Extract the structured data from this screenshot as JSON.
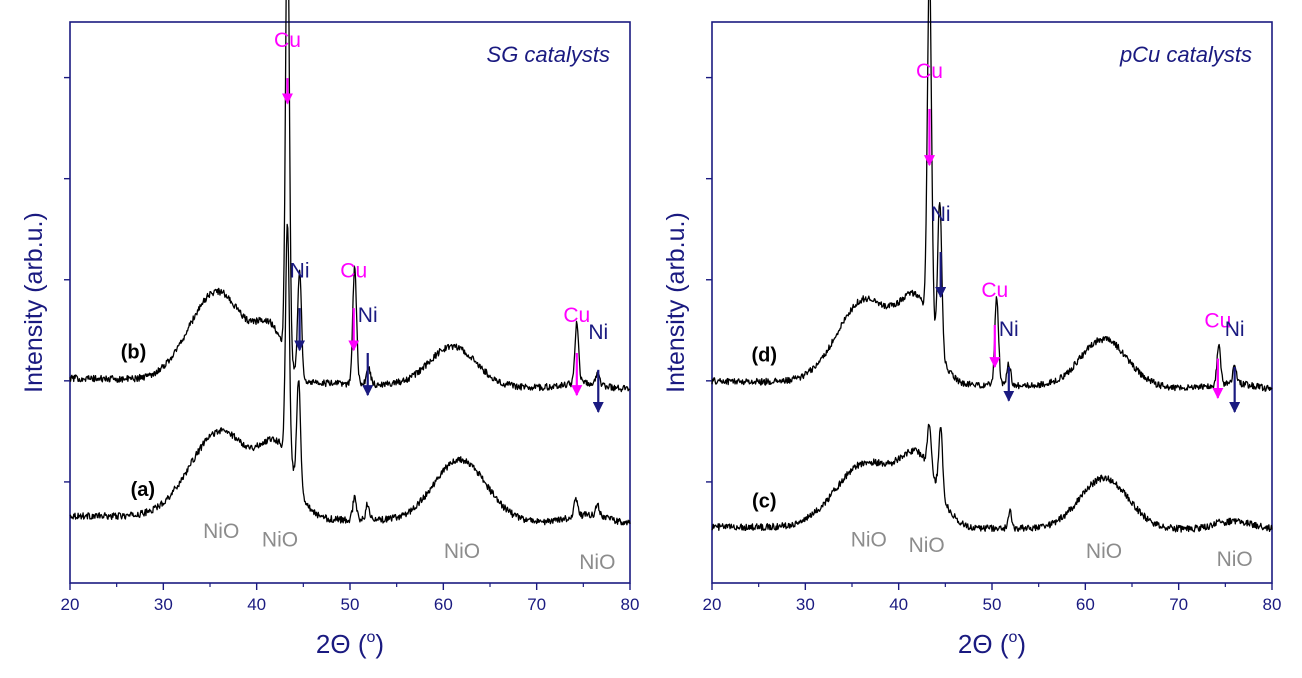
{
  "colors": {
    "axis": "#1a1a80",
    "trace": "#000000",
    "cu": "#ff00ff",
    "ni": "#1a1a80",
    "nio": "#8c8c8c",
    "title": "#1a1a80"
  },
  "chart_data": [
    {
      "type": "line",
      "title": "SG catalysts",
      "xlabel": "2Θ (o)",
      "xlabel_main": "2Θ (",
      "xlabel_sup": "o",
      "xlabel_close": ")",
      "ylabel": "Intensity (arb.u.)",
      "xlim": [
        20,
        80
      ],
      "ylim": [
        0,
        1
      ],
      "x_ticks": [
        20,
        30,
        40,
        50,
        60,
        70,
        80
      ],
      "y_ticks_labeled": false,
      "series": [
        {
          "label": "(a)",
          "label_x": 27.8,
          "baseline": 0.12,
          "end": 0.105,
          "humps": [
            [
              36.2,
              0.155,
              3.3
            ],
            [
              42.3,
              0.11,
              1.8
            ],
            [
              61.8,
              0.11,
              2.8
            ],
            [
              75.5,
              0.015,
              2.2
            ]
          ],
          "peaks": [
            [
              43.3,
              0.42,
              0.2
            ],
            [
              44.5,
              0.19,
              0.2
            ],
            [
              50.5,
              0.04,
              0.2
            ],
            [
              51.9,
              0.03,
              0.2
            ],
            [
              74.2,
              0.03,
              0.2
            ],
            [
              76.5,
              0.02,
              0.2
            ]
          ]
        },
        {
          "label": "(b)",
          "label_x": 26.8,
          "baseline": 0.365,
          "end": 0.345,
          "humps": [
            [
              35.8,
              0.16,
              3.0
            ],
            [
              41.5,
              0.08,
              1.5
            ],
            [
              61.0,
              0.07,
              2.5
            ],
            [
              75.0,
              0.01,
              2.0
            ]
          ],
          "peaks": [
            [
              43.3,
              0.83,
              0.2
            ],
            [
              44.6,
              0.19,
              0.2
            ],
            [
              50.5,
              0.21,
              0.2
            ],
            [
              52.0,
              0.03,
              0.2
            ],
            [
              74.3,
              0.11,
              0.2
            ],
            [
              76.5,
              0.02,
              0.2
            ]
          ]
        }
      ],
      "annotations": [
        {
          "text": "Cu",
          "type": "cu",
          "x": 43.3,
          "y_text": 0.955,
          "y_start": 0.9,
          "y_tip": 0.855
        },
        {
          "text": "Ni",
          "type": "ni",
          "x": 44.6,
          "y_text": 0.545,
          "y_start": 0.49,
          "y_tip": 0.415
        },
        {
          "text": "Cu",
          "type": "cu",
          "x": 50.4,
          "y_text": 0.545,
          "y_start": 0.49,
          "y_tip": 0.415
        },
        {
          "text": "Ni",
          "type": "ni",
          "x": 51.9,
          "y_text": 0.465,
          "y_start": 0.41,
          "y_tip": 0.335
        },
        {
          "text": "Cu",
          "type": "cu",
          "x": 74.3,
          "y_text": 0.465,
          "y_start": 0.41,
          "y_tip": 0.335
        },
        {
          "text": "Ni",
          "type": "ni",
          "x": 76.6,
          "y_text": 0.435,
          "y_start": 0.38,
          "y_tip": 0.305
        },
        {
          "text": "NiO",
          "type": "nio",
          "x": 36.2,
          "y_text": 0.08
        },
        {
          "text": "NiO",
          "type": "nio",
          "x": 42.5,
          "y_text": 0.065
        },
        {
          "text": "NiO",
          "type": "nio",
          "x": 62.0,
          "y_text": 0.045
        },
        {
          "text": "NiO",
          "type": "nio",
          "x": 76.5,
          "y_text": 0.025
        }
      ]
    },
    {
      "type": "line",
      "title": "pCu catalysts",
      "xlabel": "2Θ (o)",
      "xlabel_main": "2Θ (",
      "xlabel_sup": "o",
      "xlabel_close": ")",
      "ylabel": "Intensity (arb.u.)",
      "xlim": [
        20,
        80
      ],
      "ylim": [
        0,
        1
      ],
      "x_ticks": [
        20,
        30,
        40,
        50,
        60,
        70,
        80
      ],
      "y_ticks_labeled": false,
      "series": [
        {
          "label": "(c)",
          "label_x": 25.6,
          "baseline": 0.1,
          "end": 0.095,
          "humps": [
            [
              36.5,
              0.115,
              3.2
            ],
            [
              42.2,
              0.11,
              2.0
            ],
            [
              62.0,
              0.09,
              2.6
            ],
            [
              76.0,
              0.015,
              2.0
            ]
          ],
          "peaks": [
            [
              43.3,
              0.08,
              0.2
            ],
            [
              44.5,
              0.12,
              0.2
            ],
            [
              51.9,
              0.03,
              0.2
            ],
            [
              74.3,
              0.01,
              0.2
            ]
          ]
        },
        {
          "label": "(d)",
          "label_x": 25.6,
          "baseline": 0.36,
          "end": 0.345,
          "humps": [
            [
              36.5,
              0.15,
              3.0
            ],
            [
              42.0,
              0.13,
              1.8
            ],
            [
              62.0,
              0.085,
              2.5
            ],
            [
              76.0,
              0.01,
              2.0
            ]
          ],
          "peaks": [
            [
              43.3,
              0.63,
              0.22
            ],
            [
              44.4,
              0.27,
              0.22
            ],
            [
              50.5,
              0.16,
              0.2
            ],
            [
              51.8,
              0.04,
              0.2
            ],
            [
              74.3,
              0.07,
              0.2
            ],
            [
              76.0,
              0.03,
              0.2
            ]
          ]
        }
      ],
      "annotations": [
        {
          "text": "Cu",
          "type": "cu",
          "x": 43.3,
          "y_text": 0.9,
          "y_start": 0.845,
          "y_tip": 0.745
        },
        {
          "text": "Ni",
          "type": "ni",
          "x": 44.5,
          "y_text": 0.645,
          "y_start": 0.59,
          "y_tip": 0.51
        },
        {
          "text": "Cu",
          "type": "cu",
          "x": 50.3,
          "y_text": 0.51,
          "y_start": 0.46,
          "y_tip": 0.385
        },
        {
          "text": "Ni",
          "type": "ni",
          "x": 51.8,
          "y_text": 0.44,
          "y_start": 0.385,
          "y_tip": 0.325
        },
        {
          "text": "Cu",
          "type": "cu",
          "x": 74.2,
          "y_text": 0.455,
          "y_start": 0.4,
          "y_tip": 0.33
        },
        {
          "text": "Ni",
          "type": "ni",
          "x": 76.0,
          "y_text": 0.44,
          "y_start": 0.385,
          "y_tip": 0.305
        },
        {
          "text": "NiO",
          "type": "nio",
          "x": 36.8,
          "y_text": 0.065
        },
        {
          "text": "NiO",
          "type": "nio",
          "x": 43.0,
          "y_text": 0.055
        },
        {
          "text": "NiO",
          "type": "nio",
          "x": 62.0,
          "y_text": 0.045
        },
        {
          "text": "NiO",
          "type": "nio",
          "x": 76.0,
          "y_text": 0.03
        }
      ]
    }
  ]
}
